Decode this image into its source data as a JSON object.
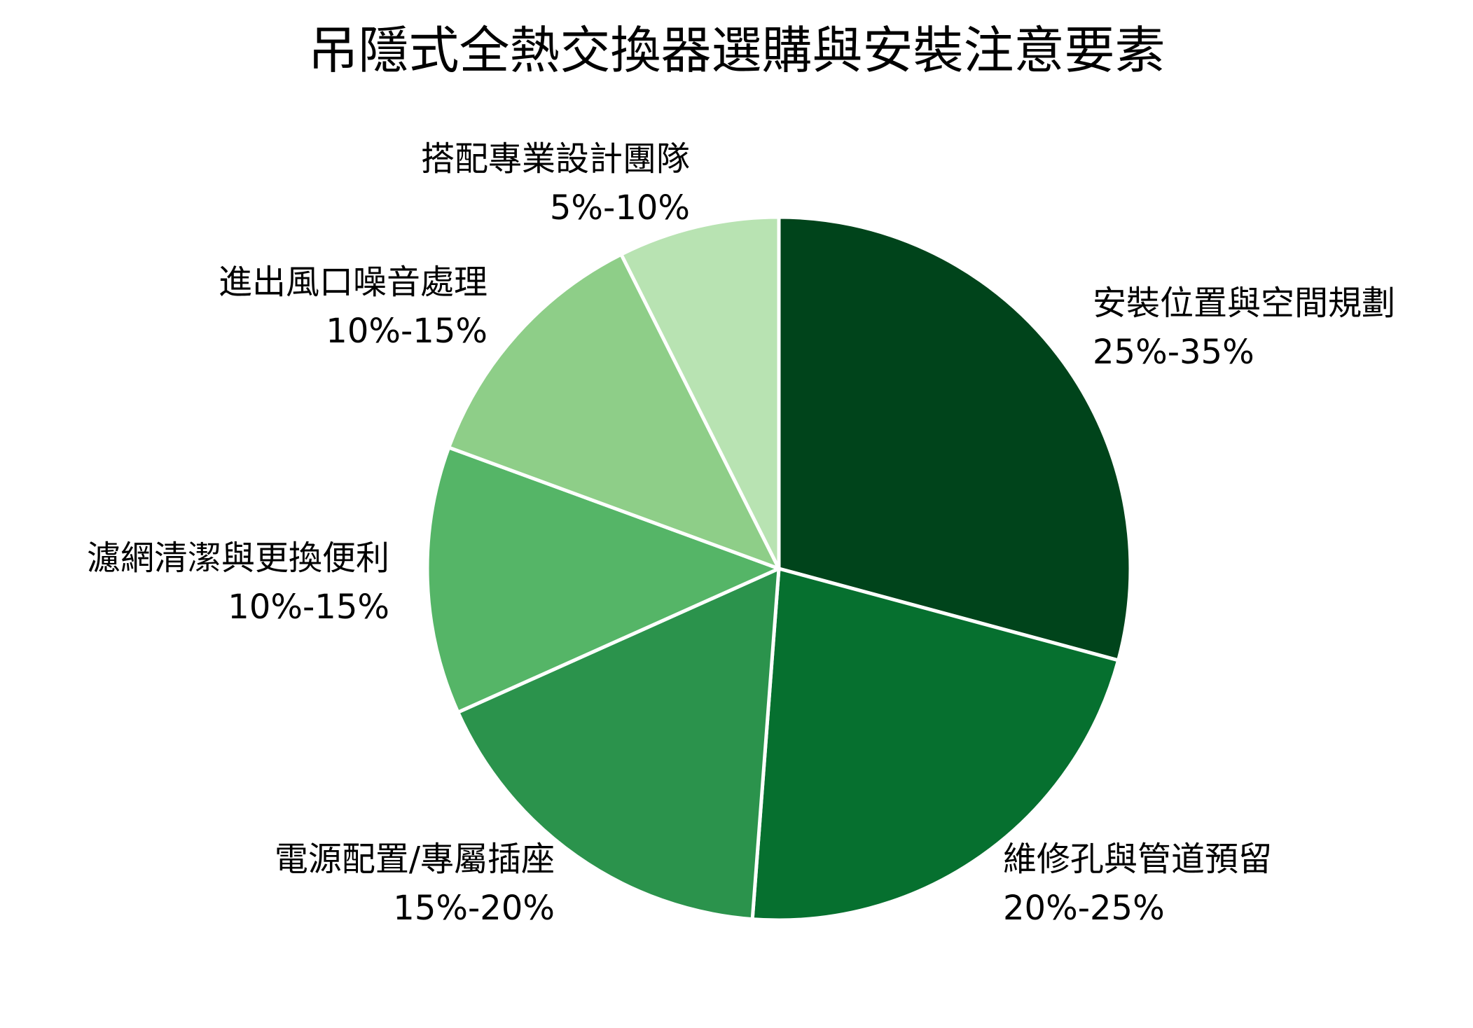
{
  "chart_data": {
    "type": "pie",
    "title": "吊隱式全熱交換器選購與安裝注意要素",
    "start_angle_deg": 90,
    "direction": "clockwise",
    "slices": [
      {
        "label": "安裝位置與空間規劃",
        "range": "25%-35%",
        "value": 29.2,
        "color": "#00441b"
      },
      {
        "label": "維修孔與管道預留",
        "range": "20%-25%",
        "value": 22.0,
        "color": "#06702f"
      },
      {
        "label": "電源配置/專屬插座",
        "range": "15%-20%",
        "value": 17.1,
        "color": "#2b934c"
      },
      {
        "label": "濾網清潔與更換便利",
        "range": "10%-15%",
        "value": 12.3,
        "color": "#55b567"
      },
      {
        "label": "進出風口噪音處理",
        "range": "10%-15%",
        "value": 12.0,
        "color": "#8ece88"
      },
      {
        "label": "搭配專業設計團隊",
        "range": "5%-10%",
        "value": 7.4,
        "color": "#b8e3b2"
      }
    ],
    "legend": "none",
    "edge_color": "#ffffff"
  }
}
